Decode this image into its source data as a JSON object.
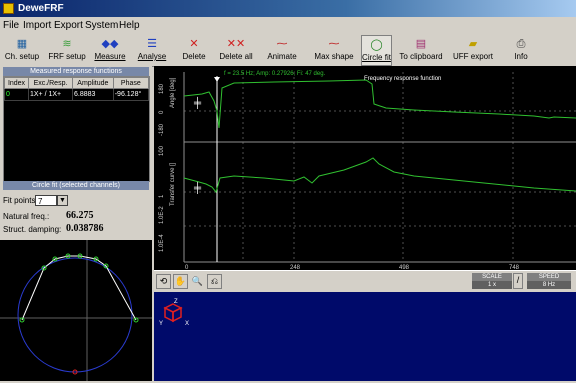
{
  "app": {
    "title": "DeweFRF"
  },
  "menu": [
    "File",
    "Import",
    "Export",
    "System",
    "Help"
  ],
  "toolbar": [
    {
      "id": "ch-setup",
      "label": "Ch. setup",
      "icon": "channel-setup-icon"
    },
    {
      "id": "frf-setup",
      "label": "FRF setup",
      "icon": "frf-setup-icon"
    },
    {
      "id": "measure",
      "label": "Measure",
      "icon": "measure-icon"
    },
    {
      "id": "analyse",
      "label": "Analyse",
      "icon": "analyse-icon"
    },
    {
      "id": "delete",
      "label": "Delete",
      "icon": "delete-icon"
    },
    {
      "id": "delete-all",
      "label": "Delete all",
      "icon": "delete-all-icon"
    },
    {
      "id": "animate",
      "label": "Animate",
      "icon": "animate-icon"
    },
    {
      "id": "max-shape",
      "label": "Max shape",
      "icon": "max-shape-icon"
    },
    {
      "id": "circle-fit",
      "label": "Circle fit",
      "icon": "circle-fit-icon",
      "active": true
    },
    {
      "id": "to-clipboard",
      "label": "To clipboard",
      "icon": "clipboard-icon"
    },
    {
      "id": "uff-export",
      "label": "UFF export",
      "icon": "uff-export-icon"
    },
    {
      "id": "info",
      "label": "Info",
      "icon": "info-icon"
    }
  ],
  "measured": {
    "header": "Measured response functions",
    "columns": [
      "Index",
      "Exc./Resp.",
      "Amplitude",
      "Phase"
    ],
    "rows": [
      [
        "0",
        "1X+ / 1X+",
        "6.8883",
        "-96.128°"
      ]
    ]
  },
  "circlefit": {
    "header": "Circle fit (selected channels)",
    "fit_points_label": "Fit points:",
    "fit_points_value": "7",
    "natural_freq_label": "Natural freq.:",
    "natural_freq_value": "66.275",
    "damping_label": "Struct. damping:",
    "damping_value": "0.038786"
  },
  "plot": {
    "cursor_readout": "f = 23.5 Hz; Amp: 0.27926; Fi: 47 deg.",
    "title": "Frequency response function",
    "phase_axis_label": "Angle [deg]",
    "phase_ticks": [
      "180",
      "0",
      "-180"
    ],
    "amp_axis_label": "Transfer curve []",
    "amp_ticks": [
      "100",
      "1",
      "1.0E-2",
      "1.0E-4"
    ],
    "x_ticks": [
      "0",
      "248",
      "498",
      "748"
    ],
    "colors": {
      "curve": "#30c030",
      "grid": "#707070",
      "cursor": "#ffffff"
    }
  },
  "bottom": {
    "scale_label": "SCALE",
    "scale_value": "1 x",
    "speed_label": "SPEED",
    "speed_value": "8 Hz"
  }
}
